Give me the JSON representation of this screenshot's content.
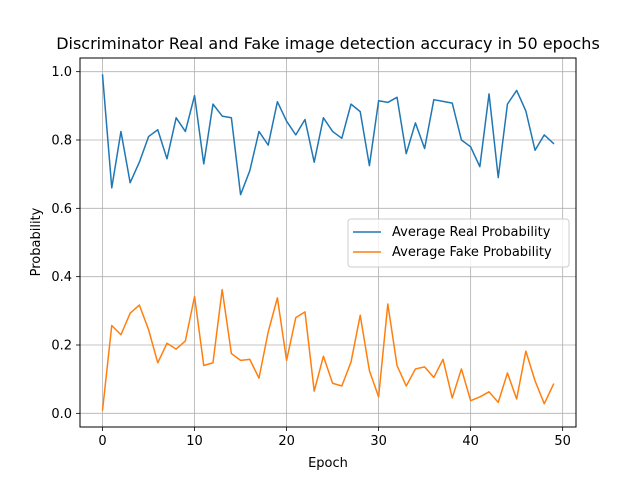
{
  "chart_data": {
    "type": "line",
    "title": "Discriminator Real and Fake image detection accuracy in 50 epochs",
    "xlabel": "Epoch",
    "ylabel": "Probability",
    "xlim": [
      -2.45,
      51.45
    ],
    "ylim": [
      -0.04,
      1.04
    ],
    "xticks": [
      0,
      10,
      20,
      30,
      40,
      50
    ],
    "yticks": [
      0.0,
      0.2,
      0.4,
      0.6,
      0.8,
      1.0
    ],
    "xtick_labels": [
      "0",
      "10",
      "20",
      "30",
      "40",
      "50"
    ],
    "ytick_labels": [
      "0.0",
      "0.2",
      "0.4",
      "0.6",
      "0.8",
      "1.0"
    ],
    "grid": true,
    "legend_position": "center-right",
    "x": [
      0,
      1,
      2,
      3,
      4,
      5,
      6,
      7,
      8,
      9,
      10,
      11,
      12,
      13,
      14,
      15,
      16,
      17,
      18,
      19,
      20,
      21,
      22,
      23,
      24,
      25,
      26,
      27,
      28,
      29,
      30,
      31,
      32,
      33,
      34,
      35,
      36,
      37,
      38,
      39,
      40,
      41,
      42,
      43,
      44,
      45,
      46,
      47,
      48,
      49
    ],
    "series": [
      {
        "name": "Average Real Probability",
        "color": "#1f77b4",
        "values": [
          0.99,
          0.66,
          0.825,
          0.675,
          0.735,
          0.81,
          0.83,
          0.745,
          0.865,
          0.825,
          0.93,
          0.73,
          0.905,
          0.87,
          0.865,
          0.64,
          0.71,
          0.825,
          0.785,
          0.912,
          0.855,
          0.815,
          0.86,
          0.735,
          0.865,
          0.825,
          0.805,
          0.905,
          0.883,
          0.725,
          0.915,
          0.91,
          0.925,
          0.76,
          0.85,
          0.775,
          0.918,
          0.913,
          0.908,
          0.8,
          0.78,
          0.722,
          0.935,
          0.69,
          0.905,
          0.945,
          0.885,
          0.77,
          0.815,
          0.79
        ]
      },
      {
        "name": "Average Fake Probability",
        "color": "#ff7f0e",
        "values": [
          0.01,
          0.257,
          0.23,
          0.293,
          0.317,
          0.245,
          0.148,
          0.205,
          0.188,
          0.212,
          0.342,
          0.14,
          0.148,
          0.362,
          0.175,
          0.155,
          0.158,
          0.103,
          0.238,
          0.338,
          0.155,
          0.28,
          0.297,
          0.065,
          0.167,
          0.088,
          0.08,
          0.15,
          0.287,
          0.125,
          0.048,
          0.32,
          0.14,
          0.08,
          0.13,
          0.136,
          0.105,
          0.158,
          0.045,
          0.13,
          0.037,
          0.048,
          0.063,
          0.032,
          0.118,
          0.042,
          0.182,
          0.095,
          0.028,
          0.085
        ]
      }
    ]
  }
}
